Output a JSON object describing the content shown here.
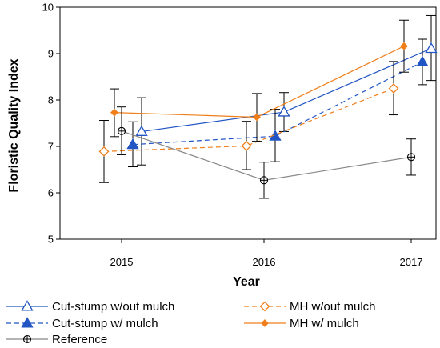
{
  "chart_data": {
    "type": "line",
    "xlabel": "Year",
    "ylabel": "Floristic Quality Index",
    "x_ticks": [
      "2015",
      "2016",
      "2017"
    ],
    "y_ticks": [
      "5",
      "6",
      "7",
      "8",
      "9",
      "10"
    ],
    "ylim": [
      5,
      10
    ],
    "grid": false,
    "legend_position": "bottom",
    "series": [
      {
        "name": "Cut-stump w/out mulch",
        "color": "#2255c4",
        "dash": "solid",
        "marker": "open-triangle",
        "x": [
          "2015",
          "2016",
          "2017"
        ],
        "values": [
          7.32,
          7.74,
          9.11
        ],
        "err_low": [
          6.6,
          7.32,
          8.42
        ],
        "err_high": [
          8.05,
          8.16,
          9.82
        ]
      },
      {
        "name": "Cut-stump w/ mulch",
        "color": "#2255c4",
        "dash": "dashed",
        "marker": "filled-triangle",
        "x": [
          "2015",
          "2016",
          "2017"
        ],
        "values": [
          7.04,
          7.22,
          8.82
        ],
        "err_low": [
          6.56,
          6.67,
          8.33
        ],
        "err_high": [
          7.53,
          7.8,
          9.31
        ]
      },
      {
        "name": "MH w/out mulch",
        "color": "#f07f1a",
        "dash": "dashed",
        "marker": "open-diamond",
        "x": [
          "2015",
          "2016",
          "2017"
        ],
        "values": [
          6.89,
          7.01,
          8.25
        ],
        "err_low": [
          6.22,
          6.5,
          7.68
        ],
        "err_high": [
          7.56,
          7.54,
          8.83
        ]
      },
      {
        "name": "MH w/ mulch",
        "color": "#f07f1a",
        "dash": "solid",
        "marker": "filled-diamond",
        "x": [
          "2015",
          "2016",
          "2017"
        ],
        "values": [
          7.73,
          7.63,
          9.16
        ],
        "err_low": [
          7.21,
          7.11,
          8.6
        ],
        "err_high": [
          8.24,
          8.14,
          9.72
        ]
      },
      {
        "name": "Reference",
        "color": "#888888",
        "dash": "solid",
        "marker": "open-circle-cross",
        "x": [
          "2015",
          "2016",
          "2017"
        ],
        "values": [
          7.33,
          6.27,
          6.77
        ],
        "err_low": [
          6.82,
          5.88,
          6.38
        ],
        "err_high": [
          7.85,
          6.66,
          7.16
        ]
      }
    ]
  }
}
